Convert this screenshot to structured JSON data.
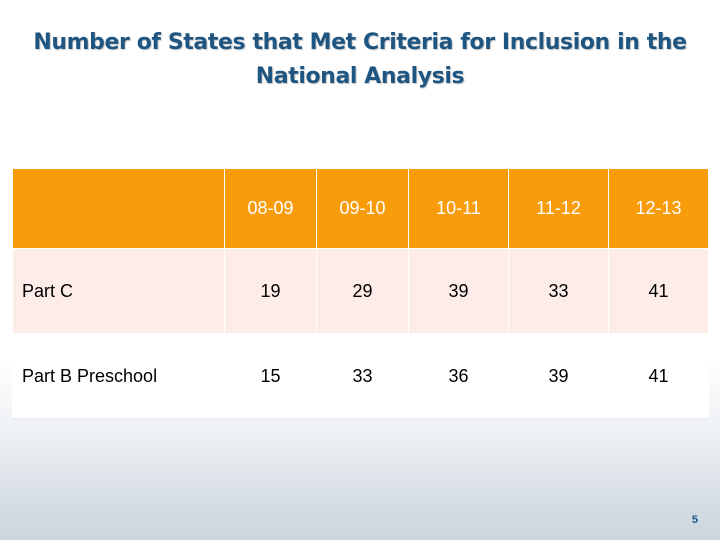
{
  "slide": {
    "title": "Number of States that Met Criteria for Inclusion in the National Analysis",
    "page_number": "5"
  },
  "table": {
    "corner": "",
    "columns": [
      "08-09",
      "09-10",
      "10-11",
      "11-12",
      "12-13"
    ],
    "rows": [
      {
        "label": "Part C",
        "values": [
          "19",
          "29",
          "39",
          "33",
          "41"
        ]
      },
      {
        "label": "Part B Preschool",
        "values": [
          "15",
          "33",
          "36",
          "39",
          "41"
        ]
      }
    ]
  },
  "colors": {
    "header_fill": "#f89c0c",
    "header_text": "#ffffff",
    "row_c_fill": "#fdece8",
    "row_b_fill": "#ffffff",
    "title_text": "#1f5581"
  }
}
